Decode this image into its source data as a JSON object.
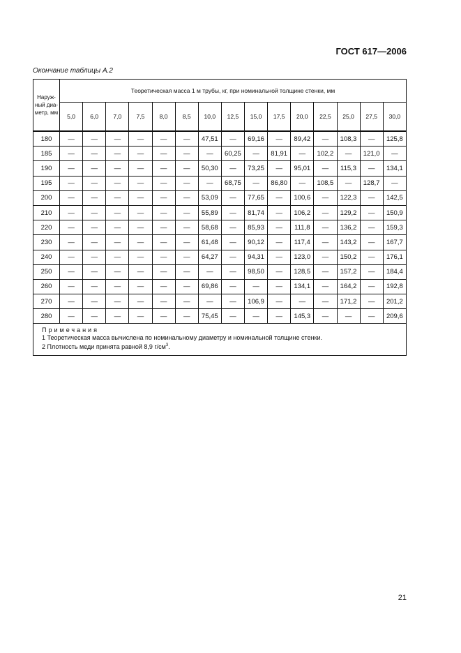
{
  "header": {
    "doc_id": "ГОСТ 617—2006"
  },
  "caption": "Окончание таблицы А.2",
  "table": {
    "first_col_header": "Наруж-ный диа-метр, мм",
    "span_header": "Теоретическая масса 1 м трубы, кг, при номинальной толщине стенки, мм",
    "thickness": [
      "5,0",
      "6,0",
      "7,0",
      "7,5",
      "8,0",
      "8,5",
      "10,0",
      "12,5",
      "15,0",
      "17,5",
      "20,0",
      "22,5",
      "25,0",
      "27,5",
      "30,0"
    ],
    "rows": [
      [
        "180",
        "—",
        "—",
        "—",
        "—",
        "—",
        "—",
        "47,51",
        "—",
        "69,16",
        "—",
        "89,42",
        "—",
        "108,3",
        "—",
        "125,8"
      ],
      [
        "185",
        "—",
        "—",
        "—",
        "—",
        "—",
        "—",
        "—",
        "60,25",
        "—",
        "81,91",
        "—",
        "102,2",
        "—",
        "121,0",
        "—"
      ],
      [
        "190",
        "—",
        "—",
        "—",
        "—",
        "—",
        "—",
        "50,30",
        "—",
        "73,25",
        "—",
        "95,01",
        "—",
        "115,3",
        "—",
        "134,1"
      ],
      [
        "195",
        "—",
        "—",
        "—",
        "—",
        "—",
        "—",
        "—",
        "68,75",
        "—",
        "86,80",
        "—",
        "108,5",
        "—",
        "128,7",
        "—"
      ],
      [
        "200",
        "—",
        "—",
        "—",
        "—",
        "—",
        "—",
        "53,09",
        "—",
        "77,65",
        "—",
        "100,6",
        "—",
        "122,3",
        "—",
        "142,5"
      ],
      [
        "210",
        "—",
        "—",
        "—",
        "—",
        "—",
        "—",
        "55,89",
        "—",
        "81,74",
        "—",
        "106,2",
        "—",
        "129,2",
        "—",
        "150,9"
      ],
      [
        "220",
        "—",
        "—",
        "—",
        "—",
        "—",
        "—",
        "58,68",
        "—",
        "85,93",
        "—",
        "111,8",
        "—",
        "136,2",
        "—",
        "159,3"
      ],
      [
        "230",
        "—",
        "—",
        "—",
        "—",
        "—",
        "—",
        "61,48",
        "—",
        "90,12",
        "—",
        "117,4",
        "—",
        "143,2",
        "—",
        "167,7"
      ],
      [
        "240",
        "—",
        "—",
        "—",
        "—",
        "—",
        "—",
        "64,27",
        "—",
        "94,31",
        "—",
        "123,0",
        "—",
        "150,2",
        "—",
        "176,1"
      ],
      [
        "250",
        "—",
        "—",
        "—",
        "—",
        "—",
        "—",
        "—",
        "—",
        "98,50",
        "—",
        "128,5",
        "—",
        "157,2",
        "—",
        "184,4"
      ],
      [
        "260",
        "—",
        "—",
        "—",
        "—",
        "—",
        "—",
        "69,86",
        "—",
        "—",
        "—",
        "134,1",
        "—",
        "164,2",
        "—",
        "192,8"
      ],
      [
        "270",
        "—",
        "—",
        "—",
        "—",
        "—",
        "—",
        "—",
        "—",
        "106,9",
        "—",
        "—",
        "—",
        "171,2",
        "—",
        "201,2"
      ],
      [
        "280",
        "—",
        "—",
        "—",
        "—",
        "—",
        "—",
        "75,45",
        "—",
        "—",
        "—",
        "145,3",
        "—",
        "—",
        "—",
        "209,6"
      ]
    ],
    "notes": {
      "title": "Примечания",
      "items": [
        "1  Теоретическая масса вычислена по номинальному диаметру и номинальной толщине стенки.",
        "2  Плотность меди принята равной 8,9 г/см"
      ],
      "superscript": "3",
      "end": "."
    }
  },
  "footer": {
    "page_number": "21"
  }
}
